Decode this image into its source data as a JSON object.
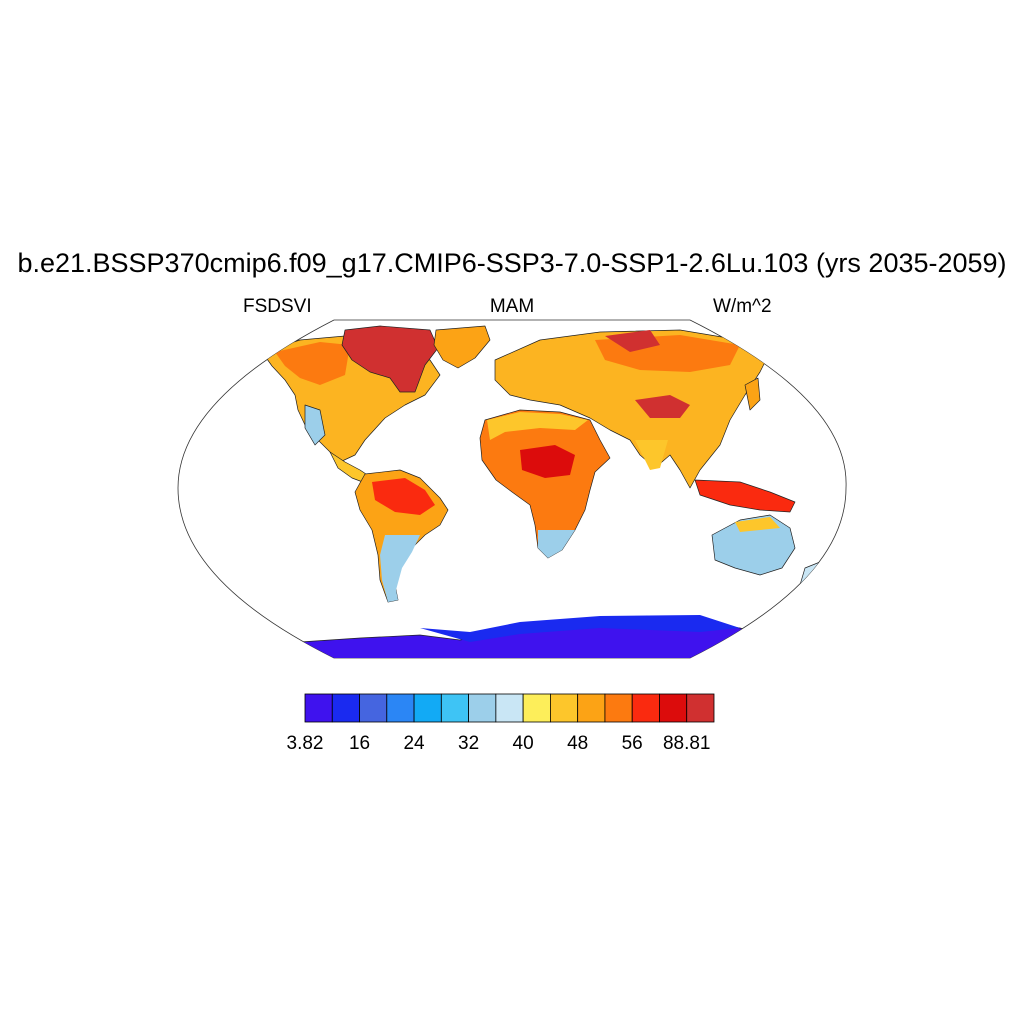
{
  "title": "b.e21.BSSP370cmip6.f09_g17.CMIP6-SSP3-7.0-SSP1-2.6Lu.103 (yrs 2035-2059)",
  "variable": "FSDSVI",
  "season": "MAM",
  "units": "W/m^2",
  "colorbar": {
    "colors": [
      "#3f12ee",
      "#1a2af0",
      "#4565e0",
      "#2b86f5",
      "#12aaf5",
      "#3ec4f5",
      "#9ccfea",
      "#c9e6f5",
      "#fdee5a",
      "#fdc62b",
      "#fca315",
      "#fc7a10",
      "#fa2a0f",
      "#dc0c0c",
      "#d03030"
    ],
    "labels": [
      {
        "text": "3.82",
        "boundary": 0
      },
      {
        "text": "16",
        "boundary": 2
      },
      {
        "text": "24",
        "boundary": 4
      },
      {
        "text": "32",
        "boundary": 6
      },
      {
        "text": "40",
        "boundary": 8
      },
      {
        "text": "48",
        "boundary": 10
      },
      {
        "text": "56",
        "boundary": 12
      },
      {
        "text": "88.81",
        "boundary": 14
      }
    ]
  }
}
